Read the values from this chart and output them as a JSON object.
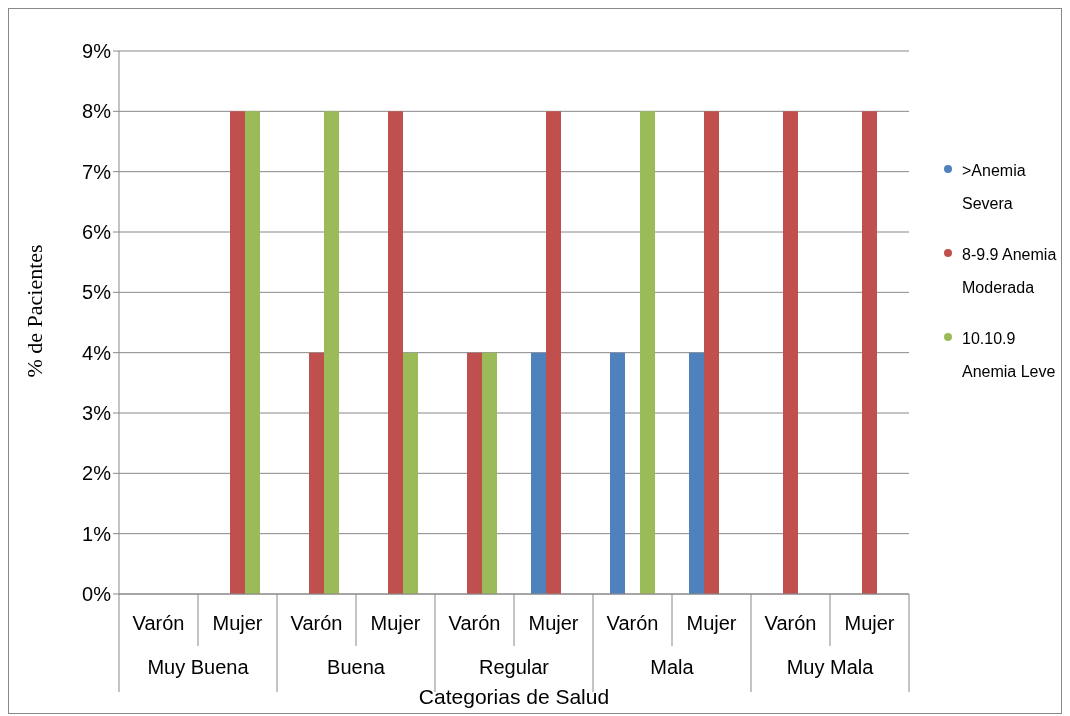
{
  "chart_data": {
    "type": "bar",
    "xlabel": "Categorias de Salud",
    "ylabel": "% de Pacientes",
    "categories": [
      "Varón",
      "Mujer",
      "Varón",
      "Mujer",
      "Varón",
      "Mujer",
      "Varón",
      "Mujer",
      "Varón",
      "Mujer"
    ],
    "annotations": [
      "Muy Buena",
      "Buena",
      "Regular",
      "Mala",
      "Muy Mala"
    ],
    "series": [
      {
        "name": ">Anemia Severa",
        "color": "#4f81bd",
        "values": [
          null,
          null,
          null,
          null,
          null,
          4,
          4,
          4,
          null,
          null
        ]
      },
      {
        "name": "8-9.9 Anemia Moderada",
        "color": "#c0504d",
        "values": [
          null,
          8,
          4,
          8,
          4,
          8,
          null,
          8,
          8,
          8
        ]
      },
      {
        "name": "10.10.9 Anemia Leve",
        "color": "#9bbb59",
        "values": [
          null,
          8,
          8,
          4,
          4,
          null,
          8,
          null,
          null,
          null
        ]
      }
    ],
    "ylim": [
      0,
      9
    ],
    "yticks": [
      {
        "value": 0,
        "label": "0%"
      },
      {
        "value": 1,
        "label": "1%"
      },
      {
        "value": 2,
        "label": "2%"
      },
      {
        "value": 3,
        "label": "3%"
      },
      {
        "value": 4,
        "label": "4%"
      },
      {
        "value": 5,
        "label": "5%"
      },
      {
        "value": 6,
        "label": "6%"
      },
      {
        "value": 7,
        "label": "7%"
      },
      {
        "value": 8,
        "label": "8%"
      },
      {
        "value": 9,
        "label": "9%"
      }
    ],
    "grid": "y",
    "legend": "right"
  }
}
